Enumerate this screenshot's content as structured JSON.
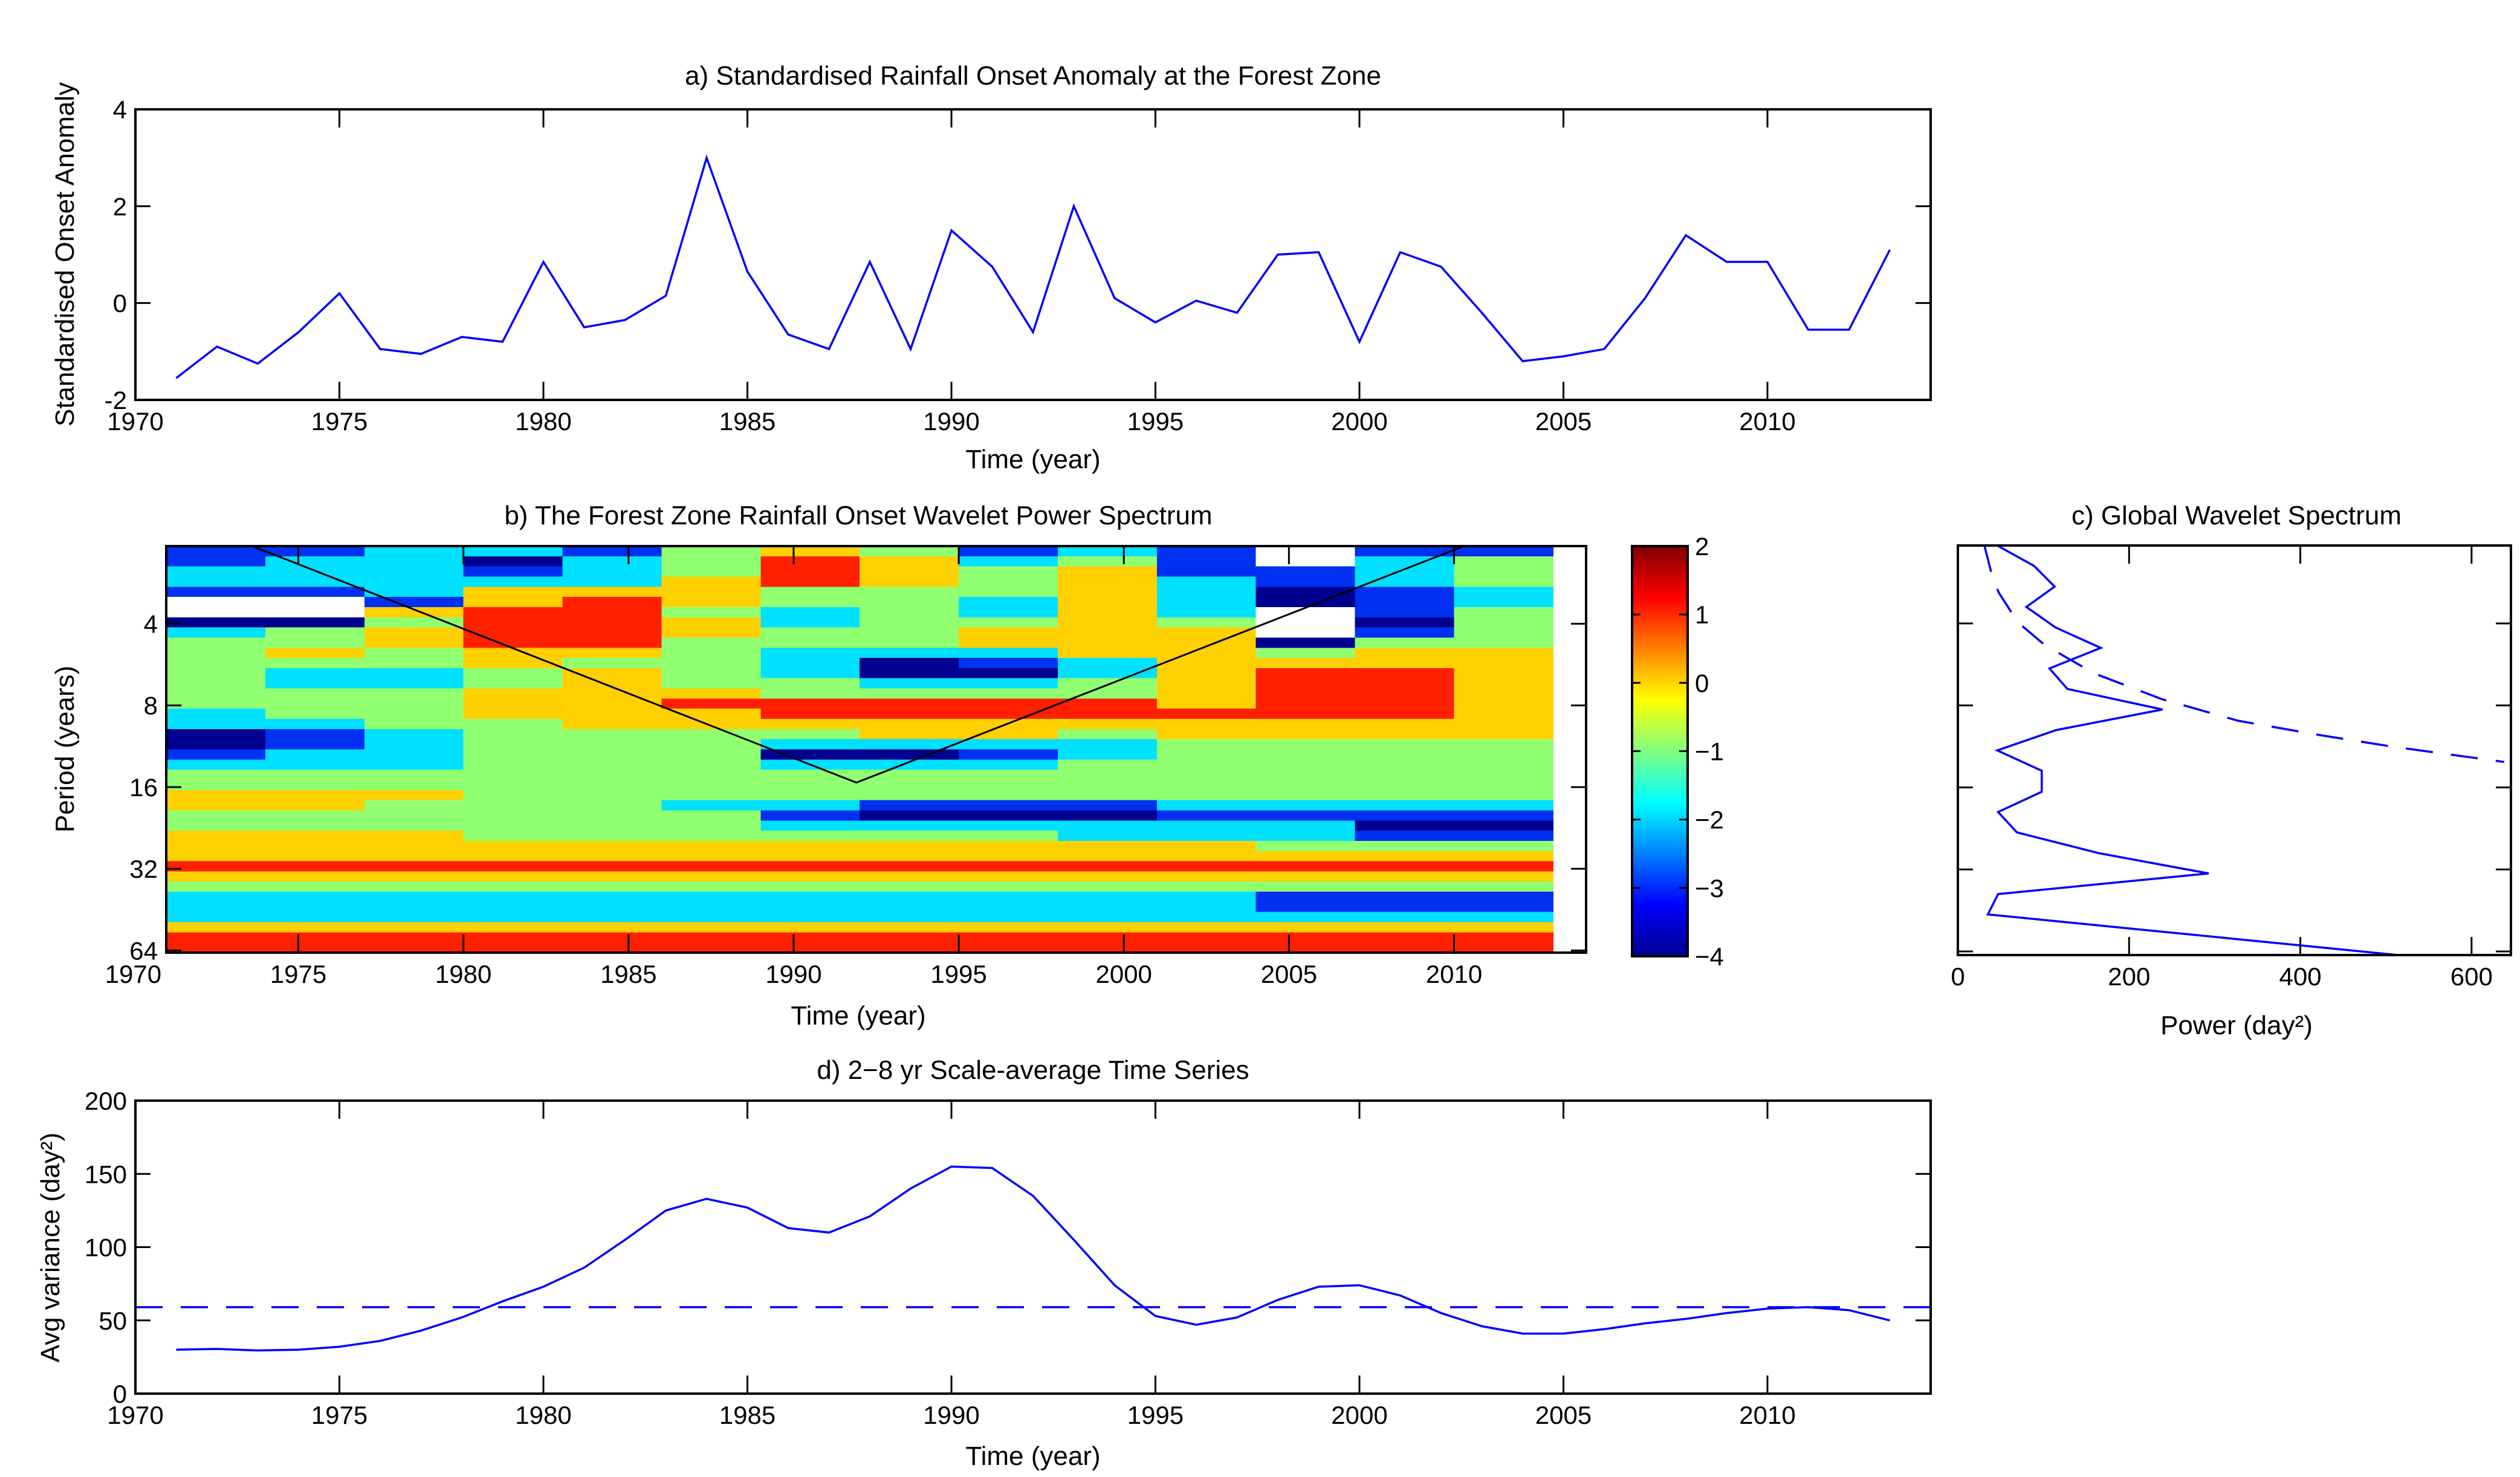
{
  "colors": {
    "line": "#0000FF",
    "axis": "#000000",
    "background": "#FFFFFF"
  },
  "chart_data": [
    {
      "id": "a",
      "type": "line",
      "title": "a) Standardised Rainfall Onset Anomaly at the Forest Zone",
      "xlabel": "Time (year)",
      "ylabel": "Standardised Onset Anomaly",
      "xlim": [
        1970,
        2014
      ],
      "ylim": [
        -2,
        4
      ],
      "xticks": [
        1970,
        1975,
        1980,
        1985,
        1990,
        1995,
        2000,
        2005,
        2010
      ],
      "yticks": [
        -2,
        0,
        2,
        4
      ],
      "x": [
        1971,
        1972,
        1973,
        1974,
        1975,
        1976,
        1977,
        1978,
        1979,
        1980,
        1981,
        1982,
        1983,
        1984,
        1985,
        1986,
        1987,
        1988,
        1989,
        1990,
        1991,
        1992,
        1993,
        1994,
        1995,
        1996,
        1997,
        1998,
        1999,
        2000,
        2001,
        2002,
        2003,
        2004,
        2005,
        2006,
        2007,
        2008,
        2009,
        2010,
        2011,
        2012,
        2013
      ],
      "y": [
        -1.55,
        -0.9,
        -1.25,
        -0.6,
        0.2,
        -0.95,
        -1.05,
        -0.7,
        -0.8,
        0.85,
        -0.5,
        -0.35,
        0.15,
        3.0,
        0.65,
        -0.65,
        -0.95,
        0.85,
        -0.95,
        1.5,
        0.75,
        -0.6,
        2.0,
        0.1,
        -0.4,
        0.05,
        -0.2,
        1.0,
        1.05,
        -0.8,
        1.05,
        0.75,
        -0.2,
        -1.2,
        -1.1,
        -0.95,
        0.1,
        1.4,
        0.85,
        0.85,
        -0.55,
        -0.55,
        1.1
      ]
    },
    {
      "id": "b",
      "type": "heatmap",
      "title": "b) The Forest Zone Rainfall Onset Wavelet Power Spectrum",
      "xlabel": "Time (year)",
      "ylabel": "Period (years)",
      "xlim": [
        1971,
        2014
      ],
      "ylim_period": [
        2.07,
        65.2
      ],
      "yscale": "log2",
      "xticks": [
        1970,
        1975,
        1980,
        1985,
        1990,
        1995,
        2000,
        2005,
        2010
      ],
      "yticks": [
        4,
        8,
        16,
        32,
        64
      ],
      "data_x_range": [
        1971,
        2013
      ],
      "level_codes": {
        "W": null,
        "N": -3.5,
        "B": -2.5,
        "C": -1.5,
        "G": -0.5,
        "Y": 0.5,
        "R": 1.5
      },
      "level_colors": {
        "W": "#FFFFFF",
        "N": "#000090",
        "B": "#0030F0",
        "C": "#00E0FF",
        "G": "#90FF70",
        "Y": "#FFD000",
        "R": "#FF2000"
      },
      "rows_top_to_bottom": [
        "BBCCBGYGBCBWBB",
        "BCCNCGRYCGBWCG",
        "CCCBCGRYGYBBCG",
        "CCCCCYRYGYCBCG",
        "BBCYYYGGGYCNBC",
        "WWBYRYGGCYCNBC",
        "WWYRRGCGCYCWBG",
        "NNGRRYCGGYGWNG",
        "CGYRRYGGYYYWBG",
        "GGYRRGGGYYYNGG",
        "GYGYYGCCCYYGYY",
        "GGGYGGCNBCYYYY",
        "GCCGYGCNNCYRRY",
        "GCCGYGGCCGYRRY",
        "GGGYYYGGGGYRRY",
        "GGGYYRRRRRYRRY",
        "CGGYYYRRRRRRRY",
        "CCGGYYYYYYYYYY",
        "NBCGGGGYYGYYYY",
        "NBCGGGCCCCGGGG",
        "BCCGGGNNBCGGGG",
        "CCCGGGCCCGGGGG",
        "GGGGGGGGGGGGGG",
        "GGGGGGGGGGGGGG",
        "YYYGGGGGGGGGGG",
        "YYGGGCCBBBCCCC",
        "GGGGGGBNNNBBBB",
        "GGGGGGCCCCCCNN",
        "YYYGGGGGGCCCBB",
        "YYYYYYYYYYYGGG",
        "YYYYYYYYYYYYYY",
        "RRRRRRRRRRRRRR",
        "YYYYYYYYYYYYYY",
        "GGGGGGGGGGGGGG",
        "CCCCCCCCCCCBBB",
        "CCCCCCCCCCCBBB",
        "CCCCCCCCCCCCCC",
        "YYYYYYYYYYYYYY",
        "RRRRRRRRRRRRRR",
        "RRRRRRRRRRRRRR"
      ],
      "cone_of_influence": [
        [
          1973.6,
          2.07
        ],
        [
          1991.9,
          15.4
        ],
        [
          2010.3,
          2.07
        ]
      ],
      "colorbar": {
        "range": [
          -4,
          2
        ],
        "ticks": [
          -4,
          -3,
          -2,
          -1,
          0,
          1,
          2
        ]
      }
    },
    {
      "id": "c",
      "type": "line",
      "title": "c) Global Wavelet Spectrum",
      "xlabel": "Power (day²)",
      "xlim": [
        0,
        646
      ],
      "ylim_period": [
        2.07,
        66
      ],
      "yscale": "log2",
      "xticks": [
        0,
        200,
        400,
        600
      ],
      "yticks": [
        4,
        8,
        16,
        32,
        64
      ],
      "series": [
        {
          "name": "global wavelet spectrum",
          "style": "solid",
          "power": [
            46,
            89,
            113,
            80,
            114,
            167,
            107,
            128,
            239,
            115,
            46,
            98,
            98,
            47,
            69,
            165,
            293,
            47,
            35,
            514
          ],
          "period": [
            2.07,
            2.46,
            2.93,
            3.48,
            4.14,
            4.92,
            5.85,
            6.96,
            8.28,
            9.85,
            11.7,
            13.9,
            16.6,
            19.7,
            23.4,
            27.9,
            33.1,
            39.4,
            46.8,
            66
          ]
        },
        {
          "name": "significance level",
          "style": "dashed",
          "power": [
            31,
            41,
            48,
            70,
            101,
            159,
            239,
            327,
            416,
            505,
            638
          ],
          "period": [
            2.07,
            2.75,
            3.09,
            3.96,
            4.79,
            6.1,
            7.6,
            9.1,
            10.2,
            11.3,
            12.9
          ]
        }
      ]
    },
    {
      "id": "d",
      "type": "line",
      "title": "d) 2−8 yr Scale-average Time Series",
      "xlabel": "Time (year)",
      "ylabel": "Avg variance (day²)",
      "xlim": [
        1970,
        2014
      ],
      "ylim": [
        0,
        200
      ],
      "xticks": [
        1970,
        1975,
        1980,
        1985,
        1990,
        1995,
        2000,
        2005,
        2010
      ],
      "yticks": [
        0,
        50,
        100,
        150,
        200
      ],
      "x": [
        1971,
        1972,
        1973,
        1974,
        1975,
        1976,
        1977,
        1978,
        1979,
        1980,
        1981,
        1982,
        1983,
        1984,
        1985,
        1986,
        1987,
        1988,
        1989,
        1990,
        1991,
        1992,
        1993,
        1994,
        1995,
        1996,
        1997,
        1998,
        1999,
        2000,
        2001,
        2002,
        2003,
        2004,
        2005,
        2006,
        2007,
        2008,
        2009,
        2010,
        2011,
        2012,
        2013
      ],
      "y": [
        30,
        30.5,
        29.5,
        30,
        32,
        36,
        43,
        52,
        63,
        73,
        86,
        105,
        125,
        133,
        127,
        113,
        110,
        121,
        140,
        155,
        154,
        135,
        105,
        74,
        53,
        47,
        52,
        64,
        73,
        74,
        67,
        55,
        46,
        41,
        41,
        44,
        48,
        51,
        55,
        58,
        59,
        57,
        50
      ],
      "significance_level": 59
    }
  ]
}
